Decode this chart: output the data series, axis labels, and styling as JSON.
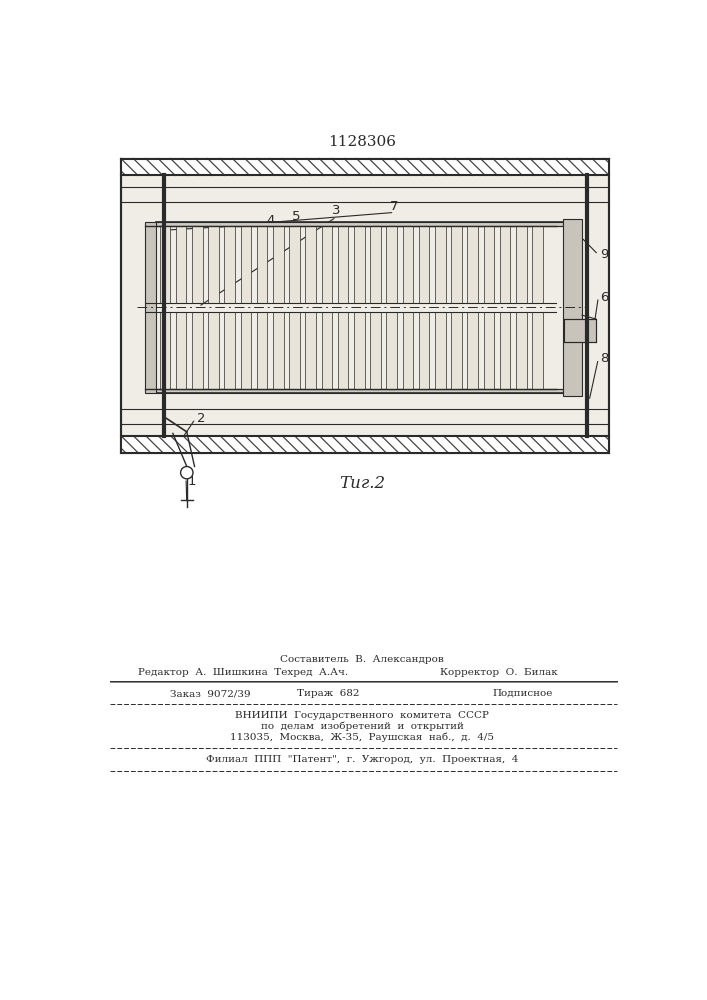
{
  "title": "1128306",
  "fig_label": "Τиг.2",
  "bg_color": "#ffffff",
  "line_color": "#2a2a2a",
  "footer_sestavitel": "Составитель  В.  Александров",
  "footer_redaktor": "Редактор  А.  Шишкина  Техред  А.Ач.",
  "footer_korrektor": "Корректор  О.  Билак",
  "footer_zakaz": "Заказ  9072/39",
  "footer_tirazh": "Тираж  682",
  "footer_podpisnoe": "Подписное",
  "footer_vniip1": "ВНИИПИ  Государственного  комитета  СССР",
  "footer_vniip2": "по  делам  изобретений  и  открытий",
  "footer_vniip3": "113035,  Москва,  Ж-35,  Раушская  наб.,  д.  4/5",
  "footer_filial": "Филиал  ППП  \"Патент\",  г.  Ужгород,  ул.  Проектная,  4"
}
